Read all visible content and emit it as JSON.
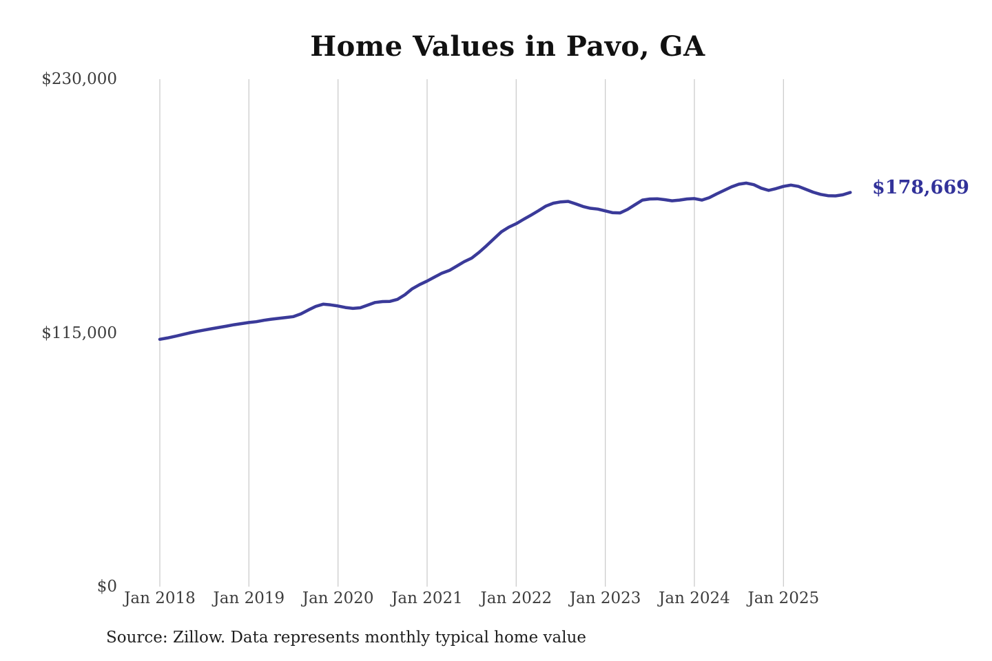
{
  "title": "Home Values in Pavo, GA",
  "source_note": "Source: Zillow. Data represents monthly typical home value",
  "end_label": "$178,669",
  "colors": {
    "line": "#3a3a99",
    "end_label": "#32329a",
    "gridline": "#cccccc",
    "tick_text": "#3d3d3d",
    "title_text": "#111111"
  },
  "chart_data": {
    "type": "line",
    "title": "Home Values in Pavo, GA",
    "series_name": "Monthly typical home value (USD)",
    "xlabel": "",
    "ylabel": "",
    "ylim": [
      0,
      230000
    ],
    "grid": "vertical-only",
    "legend": "none",
    "last_value": 178669,
    "last_value_label": "$178,669",
    "y_ticks": [
      {
        "label": "$230,000",
        "value": 230000
      },
      {
        "label": "$115,000",
        "value": 115000
      },
      {
        "label": "$0",
        "value": 0
      }
    ],
    "x_ticks": [
      {
        "label": "Jan 2018",
        "month_index": 0
      },
      {
        "label": "Jan 2019",
        "month_index": 12
      },
      {
        "label": "Jan 2020",
        "month_index": 24
      },
      {
        "label": "Jan 2021",
        "month_index": 36
      },
      {
        "label": "Jan 2022",
        "month_index": 48
      },
      {
        "label": "Jan 2023",
        "month_index": 60
      },
      {
        "label": "Jan 2024",
        "month_index": 72
      },
      {
        "label": "Jan 2025",
        "month_index": 84
      }
    ],
    "x": [
      "2018-01",
      "2018-02",
      "2018-03",
      "2018-04",
      "2018-05",
      "2018-06",
      "2018-07",
      "2018-08",
      "2018-09",
      "2018-10",
      "2018-11",
      "2018-12",
      "2019-01",
      "2019-02",
      "2019-03",
      "2019-04",
      "2019-05",
      "2019-06",
      "2019-07",
      "2019-08",
      "2019-09",
      "2019-10",
      "2019-11",
      "2019-12",
      "2020-01",
      "2020-02",
      "2020-03",
      "2020-04",
      "2020-05",
      "2020-06",
      "2020-07",
      "2020-08",
      "2020-09",
      "2020-10",
      "2020-11",
      "2020-12",
      "2021-01",
      "2021-02",
      "2021-03",
      "2021-04",
      "2021-05",
      "2021-06",
      "2021-07",
      "2021-08",
      "2021-09",
      "2021-10",
      "2021-11",
      "2021-12",
      "2022-01",
      "2022-02",
      "2022-03",
      "2022-04",
      "2022-05",
      "2022-06",
      "2022-07",
      "2022-08",
      "2022-09",
      "2022-10",
      "2022-11",
      "2022-12",
      "2023-01",
      "2023-02",
      "2023-03",
      "2023-04",
      "2023-05",
      "2023-06",
      "2023-07",
      "2023-08",
      "2023-09",
      "2023-10",
      "2023-11",
      "2023-12",
      "2024-01",
      "2024-02",
      "2024-03",
      "2024-04",
      "2024-05",
      "2024-06",
      "2024-07",
      "2024-08",
      "2024-09",
      "2024-10",
      "2024-11",
      "2024-12",
      "2025-01",
      "2025-02",
      "2025-03",
      "2025-04",
      "2025-05",
      "2025-06",
      "2025-07",
      "2025-08",
      "2025-09",
      "2025-10"
    ],
    "values": [
      112100,
      112700,
      113400,
      114200,
      115000,
      115700,
      116300,
      116900,
      117500,
      118100,
      118700,
      119200,
      119700,
      120100,
      120700,
      121200,
      121600,
      122000,
      122400,
      123600,
      125400,
      127000,
      128000,
      127700,
      127200,
      126500,
      126100,
      126400,
      127600,
      128800,
      129200,
      129300,
      130200,
      132300,
      135000,
      136900,
      138500,
      140300,
      142100,
      143300,
      145300,
      147300,
      148900,
      151500,
      154500,
      157700,
      160800,
      162900,
      164500,
      166500,
      168400,
      170400,
      172500,
      173800,
      174400,
      174600,
      173500,
      172300,
      171500,
      171100,
      170300,
      169500,
      169400,
      171000,
      173100,
      175200,
      175700,
      175800,
      175400,
      174900,
      175200,
      175700,
      175900,
      175200,
      176300,
      178000,
      179600,
      181200,
      182400,
      182900,
      182200,
      180600,
      179600,
      180400,
      181400,
      182000,
      181400,
      180100,
      178800,
      177800,
      177200,
      177100,
      177600,
      178669
    ]
  }
}
